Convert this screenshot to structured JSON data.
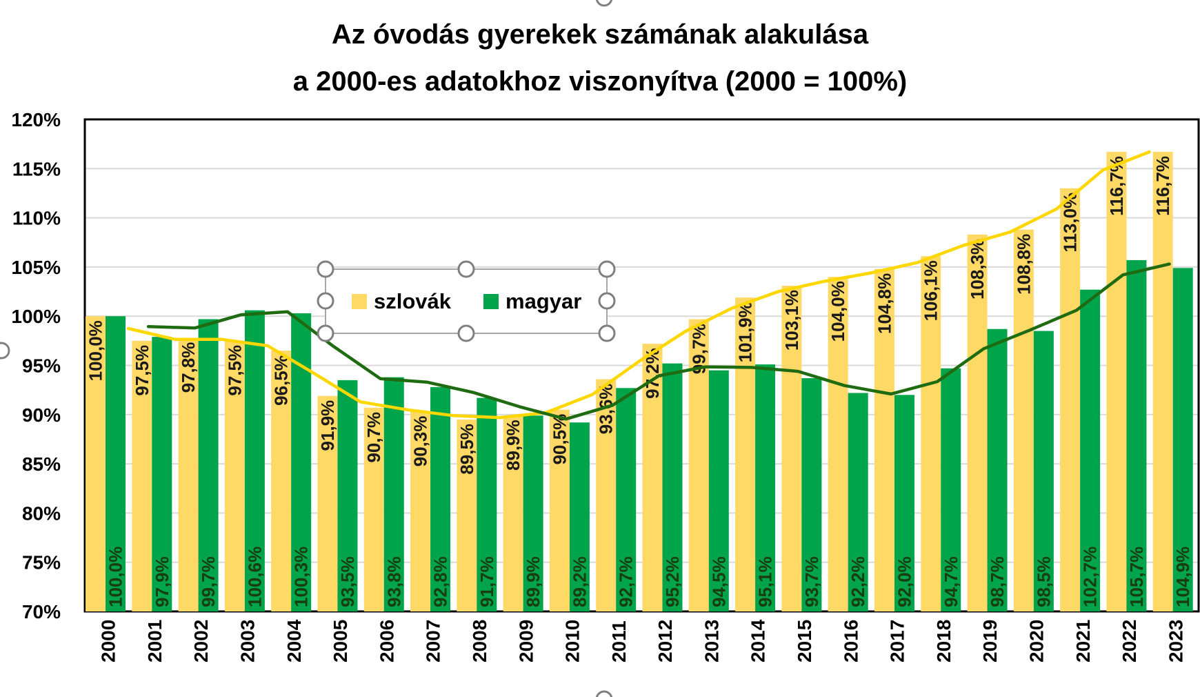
{
  "chart_data": {
    "type": "bar",
    "title": "Az óvodás gyerekek számának alakulása",
    "subtitle": "a 2000-es adatokhoz viszonyítva (2000 = 100%)",
    "categories": [
      "2000",
      "2001",
      "2002",
      "2003",
      "2004",
      "2005",
      "2006",
      "2007",
      "2008",
      "2009",
      "2010",
      "2011",
      "2012",
      "2013",
      "2014",
      "2015",
      "2016",
      "2017",
      "2018",
      "2019",
      "2020",
      "2021",
      "2022",
      "2023"
    ],
    "ylim": [
      70,
      120
    ],
    "yticks": [
      "70%",
      "75%",
      "80%",
      "85%",
      "90%",
      "95%",
      "100%",
      "105%",
      "110%",
      "115%",
      "120%"
    ],
    "grid": true,
    "legend_position": "top-center",
    "series": [
      {
        "name": "szlovák",
        "color": "#FFD966",
        "values": [
          100.0,
          97.5,
          97.8,
          97.5,
          96.5,
          91.9,
          90.7,
          90.3,
          89.5,
          89.9,
          90.5,
          93.6,
          97.2,
          99.7,
          101.9,
          103.1,
          104.0,
          104.8,
          106.1,
          108.3,
          108.8,
          113.0,
          116.7,
          116.7
        ],
        "labels": [
          "100,0%",
          "97,5%",
          "97,8%",
          "97,5%",
          "96,5%",
          "91,9%",
          "90,7%",
          "90,3%",
          "89,5%",
          "89,9%",
          "90,5%",
          "93,6%",
          "97,2%",
          "99,7%",
          "101,9%",
          "103,1%",
          "104,0%",
          "104,8%",
          "106,1%",
          "108,3%",
          "108,8%",
          "113,0%",
          "116,7%",
          "116,7%"
        ]
      },
      {
        "name": "magyar",
        "color": "#00A44A",
        "values": [
          100.0,
          97.9,
          99.7,
          100.6,
          100.3,
          93.5,
          93.8,
          92.8,
          91.7,
          89.9,
          89.2,
          92.7,
          95.2,
          94.5,
          95.1,
          93.7,
          92.2,
          92.0,
          94.7,
          98.7,
          98.5,
          102.7,
          105.7,
          104.9
        ],
        "labels": [
          "100,0%",
          "97,9%",
          "99,7%",
          "100,6%",
          "100,3%",
          "93,5%",
          "93,8%",
          "92,8%",
          "91,7%",
          "89,9%",
          "89,2%",
          "92,7%",
          "95,2%",
          "94,5%",
          "95,1%",
          "93,7%",
          "92,2%",
          "92,0%",
          "94,7%",
          "98,7%",
          "98,5%",
          "102,7%",
          "105,7%",
          "104,9%"
        ]
      }
    ],
    "trendlines": [
      {
        "series": "szlovák",
        "color": "#FFD700"
      },
      {
        "series": "magyar",
        "color": "#1F6B12"
      }
    ]
  }
}
